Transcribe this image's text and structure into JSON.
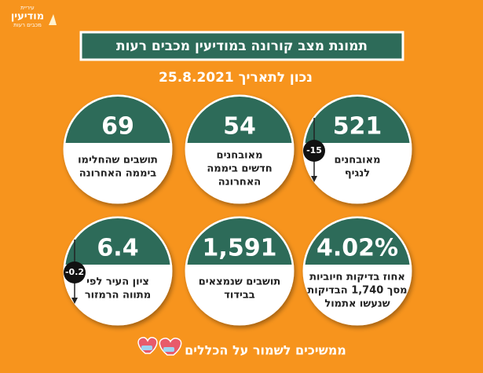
{
  "logo": {
    "lines": [
      "עיריית",
      "מודיעין",
      "מכבים רעות"
    ]
  },
  "header": {
    "title": "תמונת מצב קורונה במודיעין מכבים רעות",
    "subtitle": "נכון לתאריך 25.8.2021"
  },
  "cards": [
    {
      "value": "521",
      "label": [
        "מאובחנים",
        "לנגיף"
      ],
      "badge": "-15"
    },
    {
      "value": "54",
      "label": [
        "מאובחנים",
        "חדשים ביממה",
        "האחרונה"
      ]
    },
    {
      "value": "69",
      "label": [
        "תושבים שהחלימו",
        "ביממה האחרונה"
      ]
    },
    {
      "value": "4.02%",
      "label": [
        "אחוז בדיקות חיוביות",
        "מסך 1,740 הבדיקות",
        "שנעשו אתמול"
      ]
    },
    {
      "value": "1,591",
      "label": [
        "תושבים שנמצאים",
        "בבידוד"
      ]
    },
    {
      "value": "6.4",
      "label": [
        "ציון העיר לפי",
        "מתווה הרמזור"
      ],
      "badge": "-0.2"
    }
  ],
  "footer": {
    "text": "ממשיכים לשמור על הכללים"
  }
}
